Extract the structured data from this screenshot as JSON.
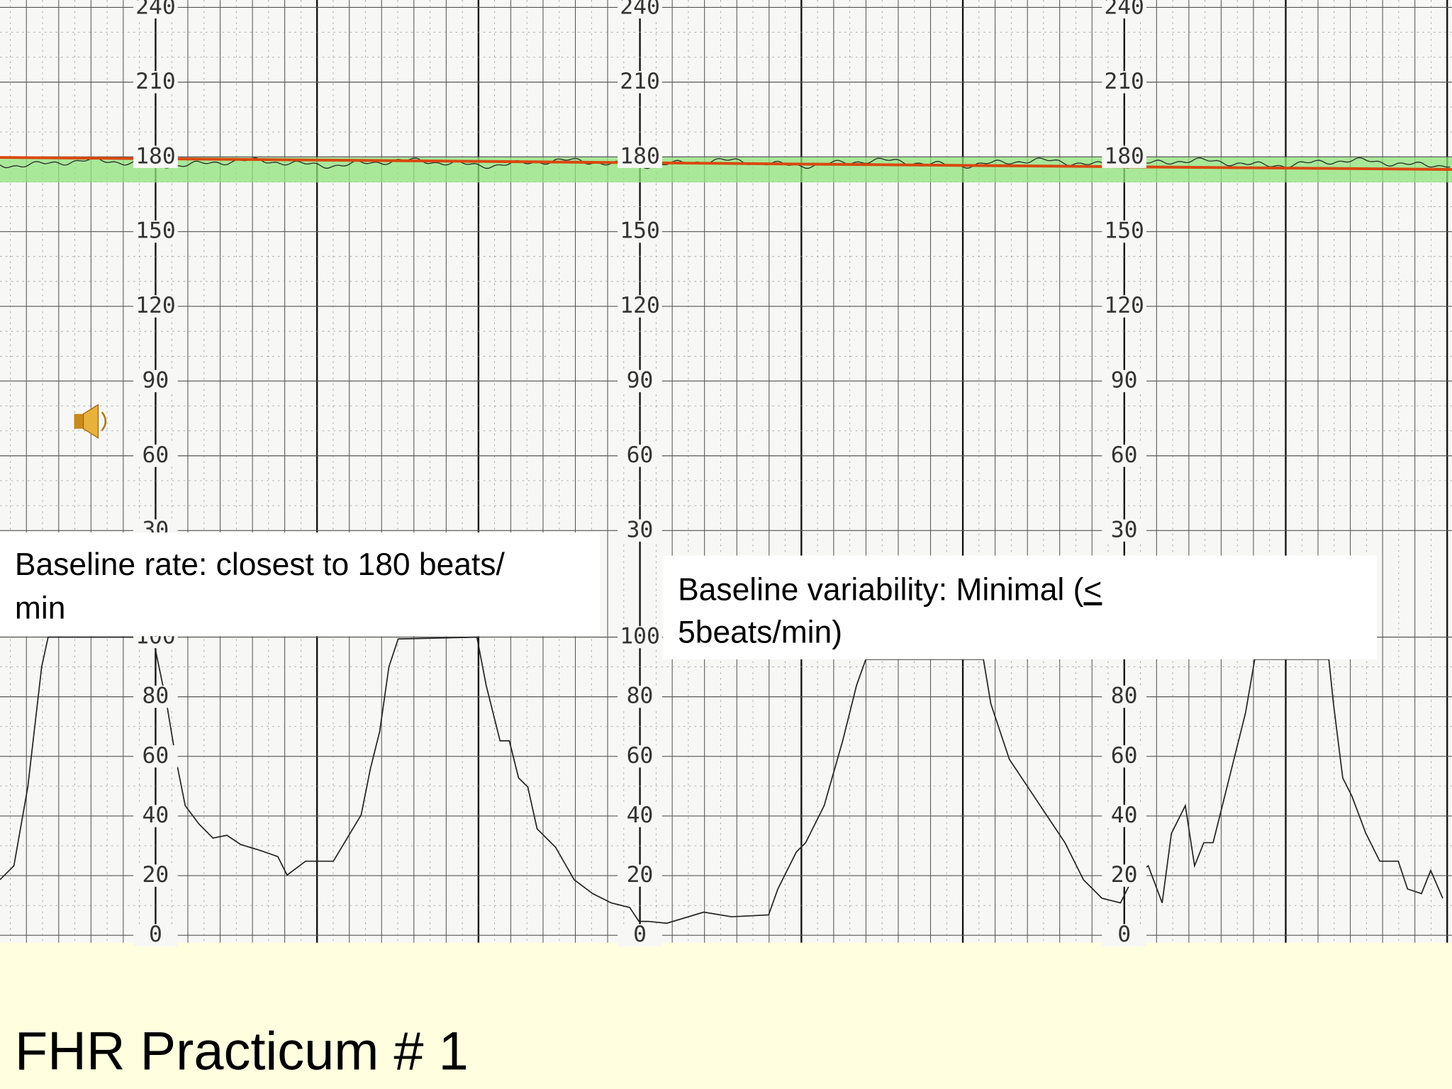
{
  "fhr_scale": {
    "labels": [
      "240",
      "210",
      "180",
      "150",
      "120",
      "90",
      "60",
      "30"
    ]
  },
  "ua_scale": {
    "labels": [
      "100",
      "80",
      "60",
      "40",
      "20",
      "0"
    ]
  },
  "notes": {
    "baseline_rate": [
      "Baseline rate: closest to 180 beats/",
      "min"
    ],
    "baseline_variability": {
      "line1": "Baseline variability: Minimal (",
      "symbol": "<",
      "line2": "5beats/min)"
    }
  },
  "title": "FHR Practicum # 1"
}
